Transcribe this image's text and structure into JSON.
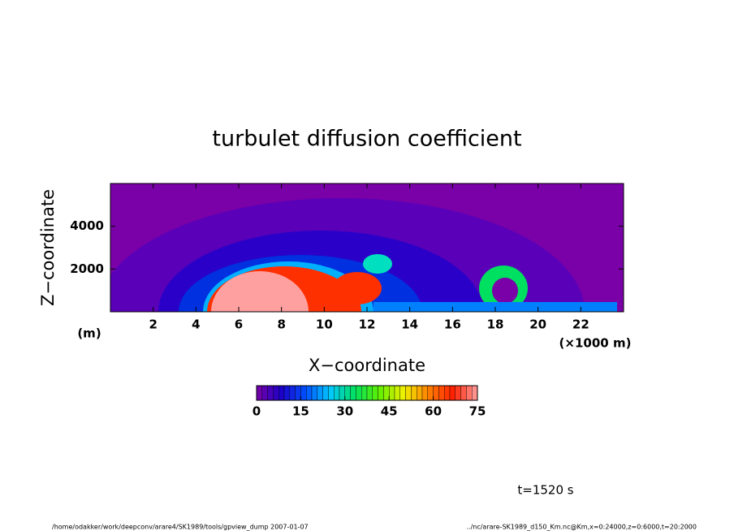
{
  "chart_data": {
    "type": "heatmap",
    "title": "turbulet diffusion coefficient",
    "x_label": "X−coordinate",
    "y_label": "Z−coordinate",
    "x_unit": "(×1000 m)",
    "y_unit": "(m)",
    "xlim": [
      0,
      24
    ],
    "xticks": [
      2,
      4,
      6,
      8,
      10,
      12,
      14,
      16,
      18,
      20,
      22
    ],
    "ylim": [
      0,
      6000
    ],
    "yticks": [
      2000,
      4000
    ],
    "colorbar": {
      "lim": [
        0,
        75
      ],
      "ticks": [
        0,
        15,
        30,
        45,
        60,
        75
      ],
      "colormap": [
        "#7a00a8",
        "#1c00c8",
        "#0050ff",
        "#00c8ff",
        "#00e060",
        "#60f000",
        "#f0f000",
        "#ff8000",
        "#ff2000",
        "#ffa0a0"
      ]
    },
    "time_label": "t=1520 s",
    "footer_left": "/home/odakker/work/deepconv/arare4/SK1989/tools/gpview_dump   2007-01-07",
    "footer_right": "../nc/arare-SK1989_d150_Km.nc@Km,x=0:24000,z=0:6000,t=20:2000"
  }
}
